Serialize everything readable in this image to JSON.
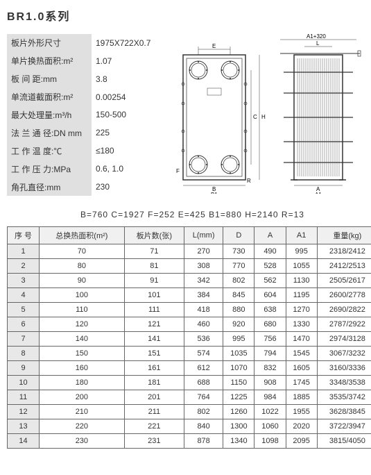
{
  "title": "BR1.0系列",
  "specs": [
    {
      "label": "板片外形尺寸",
      "value": "1975X722X0.7"
    },
    {
      "label": "单片换热面积:m²",
      "value": "1.07"
    },
    {
      "label": "板 间 距:mm",
      "value": "3.8"
    },
    {
      "label": "单流道截面积:m²",
      "value": "0.00254"
    },
    {
      "label": "最大处理量:m³/h",
      "value": "150-500"
    },
    {
      "label": "法 兰 通 径:DN mm",
      "value": "225"
    },
    {
      "label": "工 作 温 度:℃",
      "value": "≤180"
    },
    {
      "label": "工 作 压 力:MPa",
      "value": "0.6, 1.0"
    },
    {
      "label": "角孔直径:mm",
      "value": "230"
    }
  ],
  "diagram_labels": {
    "top_right": "A1+320",
    "E": "E",
    "B": "B",
    "B1": "B1",
    "C": "C",
    "H": "H",
    "F": "F",
    "R": "R",
    "A": "A",
    "A1": "A1",
    "L": "L"
  },
  "dims_line": "B=760    C=1927    F=252    E=425    B1=880    H=2140    R=13",
  "table": {
    "headers": [
      "序 号",
      "总换热面积(m²)",
      "板片数(张)",
      "L(mm)",
      "D",
      "A",
      "A1",
      "重量(kg)"
    ],
    "rows": [
      [
        "1",
        "70",
        "71",
        "270",
        "730",
        "490",
        "995",
        "2318/2412"
      ],
      [
        "2",
        "80",
        "81",
        "308",
        "770",
        "528",
        "1055",
        "2412/2513"
      ],
      [
        "3",
        "90",
        "91",
        "342",
        "802",
        "562",
        "1130",
        "2505/2617"
      ],
      [
        "4",
        "100",
        "101",
        "384",
        "845",
        "604",
        "1195",
        "2600/2778"
      ],
      [
        "5",
        "110",
        "111",
        "418",
        "880",
        "638",
        "1270",
        "2690/2822"
      ],
      [
        "6",
        "120",
        "121",
        "460",
        "920",
        "680",
        "1330",
        "2787/2922"
      ],
      [
        "7",
        "140",
        "141",
        "536",
        "995",
        "756",
        "1470",
        "2974/3128"
      ],
      [
        "8",
        "150",
        "151",
        "574",
        "1035",
        "794",
        "1545",
        "3067/3232"
      ],
      [
        "9",
        "160",
        "161",
        "612",
        "1070",
        "832",
        "1605",
        "3160/3336"
      ],
      [
        "10",
        "180",
        "181",
        "688",
        "1150",
        "908",
        "1745",
        "3348/3538"
      ],
      [
        "11",
        "200",
        "201",
        "764",
        "1225",
        "984",
        "1885",
        "3535/3742"
      ],
      [
        "12",
        "210",
        "211",
        "802",
        "1260",
        "1022",
        "1955",
        "3628/3845"
      ],
      [
        "13",
        "220",
        "221",
        "840",
        "1300",
        "1060",
        "2020",
        "3722/3947"
      ],
      [
        "14",
        "230",
        "231",
        "878",
        "1340",
        "1098",
        "2095",
        "3815/4050"
      ]
    ]
  },
  "colors": {
    "label_bg": "#e0e0e0",
    "border": "#666666",
    "text": "#333333"
  }
}
